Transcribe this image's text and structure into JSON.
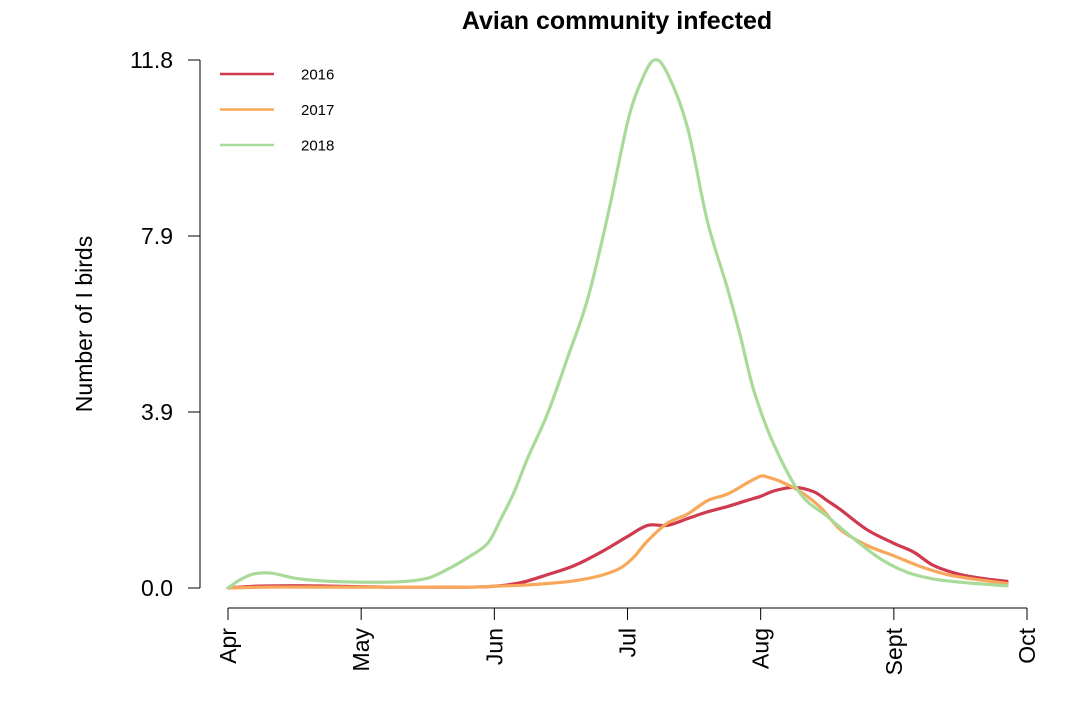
{
  "chart_data": {
    "type": "line",
    "title": "Avian community infected",
    "xlabel": "",
    "ylabel": "Number of I birds",
    "x_tick_labels": [
      "Apr",
      "May",
      "Jun",
      "Jul",
      "Aug",
      "Sept",
      "Oct"
    ],
    "y_tick_labels": [
      "0.0",
      "3.9",
      "7.9",
      "11.8"
    ],
    "ylim": [
      0,
      11.8
    ],
    "xlim_months": [
      0,
      6
    ],
    "x_unit": "months since Apr 1",
    "legend_position": "top-left",
    "grid": false,
    "series": [
      {
        "name": "2016",
        "color": "#d03a4e",
        "x": [
          0,
          0.2,
          0.4,
          0.6,
          0.8,
          1.0,
          1.2,
          1.4,
          1.6,
          1.8,
          2.0,
          2.2,
          2.4,
          2.6,
          2.8,
          3.0,
          3.15,
          3.3,
          3.45,
          3.6,
          3.75,
          3.9,
          4.0,
          4.1,
          4.25,
          4.4,
          4.5,
          4.6,
          4.8,
          5.0,
          5.15,
          5.3,
          5.5,
          5.7,
          5.85
        ],
        "y": [
          0.0,
          0.04,
          0.05,
          0.05,
          0.04,
          0.03,
          0.02,
          0.02,
          0.02,
          0.02,
          0.04,
          0.12,
          0.3,
          0.5,
          0.8,
          1.15,
          1.4,
          1.4,
          1.55,
          1.7,
          1.82,
          1.96,
          2.05,
          2.17,
          2.25,
          2.15,
          1.95,
          1.75,
          1.3,
          1.0,
          0.8,
          0.5,
          0.3,
          0.2,
          0.15
        ]
      },
      {
        "name": "2017",
        "color": "#f7a85a",
        "x": [
          0,
          0.3,
          0.6,
          1.0,
          1.4,
          1.8,
          2.0,
          2.2,
          2.4,
          2.6,
          2.8,
          2.95,
          3.05,
          3.15,
          3.3,
          3.45,
          3.6,
          3.75,
          3.9,
          4.0,
          4.05,
          4.15,
          4.3,
          4.45,
          4.6,
          4.8,
          5.0,
          5.2,
          5.4,
          5.6,
          5.85
        ],
        "y": [
          0.0,
          0.02,
          0.02,
          0.02,
          0.02,
          0.02,
          0.04,
          0.06,
          0.1,
          0.16,
          0.28,
          0.45,
          0.7,
          1.05,
          1.45,
          1.65,
          1.95,
          2.1,
          2.35,
          2.5,
          2.48,
          2.38,
          2.15,
          1.8,
          1.3,
          0.95,
          0.72,
          0.48,
          0.3,
          0.2,
          0.1
        ]
      },
      {
        "name": "2018",
        "color": "#a8db9a",
        "x": [
          0,
          0.1,
          0.2,
          0.33,
          0.5,
          0.7,
          1.0,
          1.3,
          1.5,
          1.65,
          1.8,
          1.95,
          2.05,
          2.15,
          2.25,
          2.4,
          2.55,
          2.7,
          2.85,
          3.0,
          3.1,
          3.2,
          3.3,
          3.45,
          3.6,
          3.75,
          3.85,
          3.95,
          4.1,
          4.3,
          4.5,
          4.7,
          4.9,
          5.1,
          5.3,
          5.5,
          5.7,
          5.85
        ],
        "y": [
          0.0,
          0.2,
          0.32,
          0.33,
          0.22,
          0.16,
          0.13,
          0.14,
          0.22,
          0.42,
          0.68,
          1.0,
          1.55,
          2.15,
          2.9,
          3.9,
          5.15,
          6.45,
          8.3,
          10.4,
          11.3,
          11.8,
          11.5,
          10.3,
          8.2,
          6.7,
          5.6,
          4.4,
          3.2,
          2.1,
          1.6,
          1.1,
          0.65,
          0.35,
          0.2,
          0.13,
          0.08,
          0.05
        ]
      }
    ]
  }
}
